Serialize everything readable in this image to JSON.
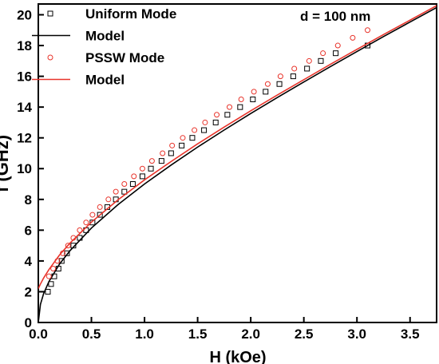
{
  "chart_data": {
    "type": "scatter",
    "xlabel": "H (kOe)",
    "ylabel": "f (GHz)",
    "annotation": "d = 100 nm",
    "xlim": [
      0,
      3.75
    ],
    "ylim": [
      0,
      20.7
    ],
    "xticks": [
      {
        "value": 0,
        "label": "0.0"
      },
      0.5,
      {
        "value": 1,
        "label": "1.0"
      },
      1.5,
      {
        "value": 2,
        "label": "2.0"
      },
      2.5,
      {
        "value": 3,
        "label": "3.0"
      },
      3.5
    ],
    "yticks": [
      0,
      2,
      4,
      6,
      8,
      10,
      12,
      14,
      16,
      18,
      20
    ],
    "series": [
      {
        "name": "Uniform Mode",
        "style": "square",
        "color": "#000000",
        "x": [
          0.09,
          0.12,
          0.15,
          0.19,
          0.22,
          0.27,
          0.33,
          0.39,
          0.45,
          0.51,
          0.58,
          0.65,
          0.73,
          0.81,
          0.89,
          0.98,
          1.06,
          1.16,
          1.25,
          1.35,
          1.45,
          1.56,
          1.67,
          1.78,
          1.9,
          2.02,
          2.14,
          2.27,
          2.4,
          2.53,
          2.66,
          2.8,
          3.1
        ],
        "values": [
          2,
          2.5,
          3,
          3.5,
          4,
          4.5,
          5,
          5.5,
          6,
          6.5,
          7,
          7.5,
          8,
          8.5,
          9,
          9.5,
          10,
          10.5,
          11,
          11.5,
          12,
          12.5,
          13,
          13.5,
          14,
          14.5,
          15,
          15.5,
          16,
          16.5,
          17,
          17.5,
          18
        ]
      },
      {
        "name": "Model",
        "style": "line",
        "color": "#000000",
        "x": [
          0,
          0.02,
          0.05,
          0.1,
          0.2,
          0.3,
          0.5,
          0.75,
          1,
          1.25,
          1.5,
          1.75,
          2,
          2.25,
          2.5,
          2.75,
          3,
          3.25,
          3.5,
          3.75
        ],
        "values": [
          0,
          1.18,
          1.88,
          2.66,
          3.8,
          4.68,
          6.14,
          7.66,
          9,
          10.23,
          11.4,
          12.51,
          13.58,
          14.62,
          15.63,
          16.63,
          17.61,
          18.58,
          19.53,
          20.47
        ]
      },
      {
        "name": "PSSW Mode",
        "style": "circle",
        "color": "#e8332a",
        "x": [
          0.1,
          0.14,
          0.18,
          0.23,
          0.28,
          0.33,
          0.39,
          0.45,
          0.51,
          0.58,
          0.66,
          0.73,
          0.81,
          0.9,
          0.98,
          1.07,
          1.17,
          1.26,
          1.36,
          1.47,
          1.57,
          1.68,
          1.8,
          1.91,
          2.03,
          2.16,
          2.28,
          2.41,
          2.55,
          2.68,
          2.82,
          2.96,
          3.1
        ],
        "values": [
          3,
          3.5,
          4,
          4.5,
          5,
          5.5,
          6,
          6.5,
          7,
          7.5,
          8,
          8.5,
          9,
          9.5,
          10,
          10.5,
          11,
          11.5,
          12,
          12.5,
          13,
          13.5,
          14,
          14.5,
          15,
          15.5,
          16,
          16.5,
          17,
          17.5,
          18,
          18.5,
          19
        ]
      },
      {
        "name": "Model",
        "style": "line",
        "color": "#e8332a",
        "x": [
          0,
          0.02,
          0.05,
          0.1,
          0.2,
          0.3,
          0.5,
          0.75,
          1,
          1.25,
          1.5,
          1.75,
          2,
          2.25,
          2.5,
          2.75,
          3,
          3.25,
          3.5,
          3.75
        ],
        "values": [
          2.2,
          2.5,
          2.89,
          3.44,
          4.39,
          5.17,
          6.52,
          7.97,
          9.27,
          10.46,
          11.61,
          12.7,
          13.76,
          14.78,
          15.78,
          16.78,
          17.75,
          18.71,
          19.65,
          20.59
        ]
      }
    ]
  }
}
